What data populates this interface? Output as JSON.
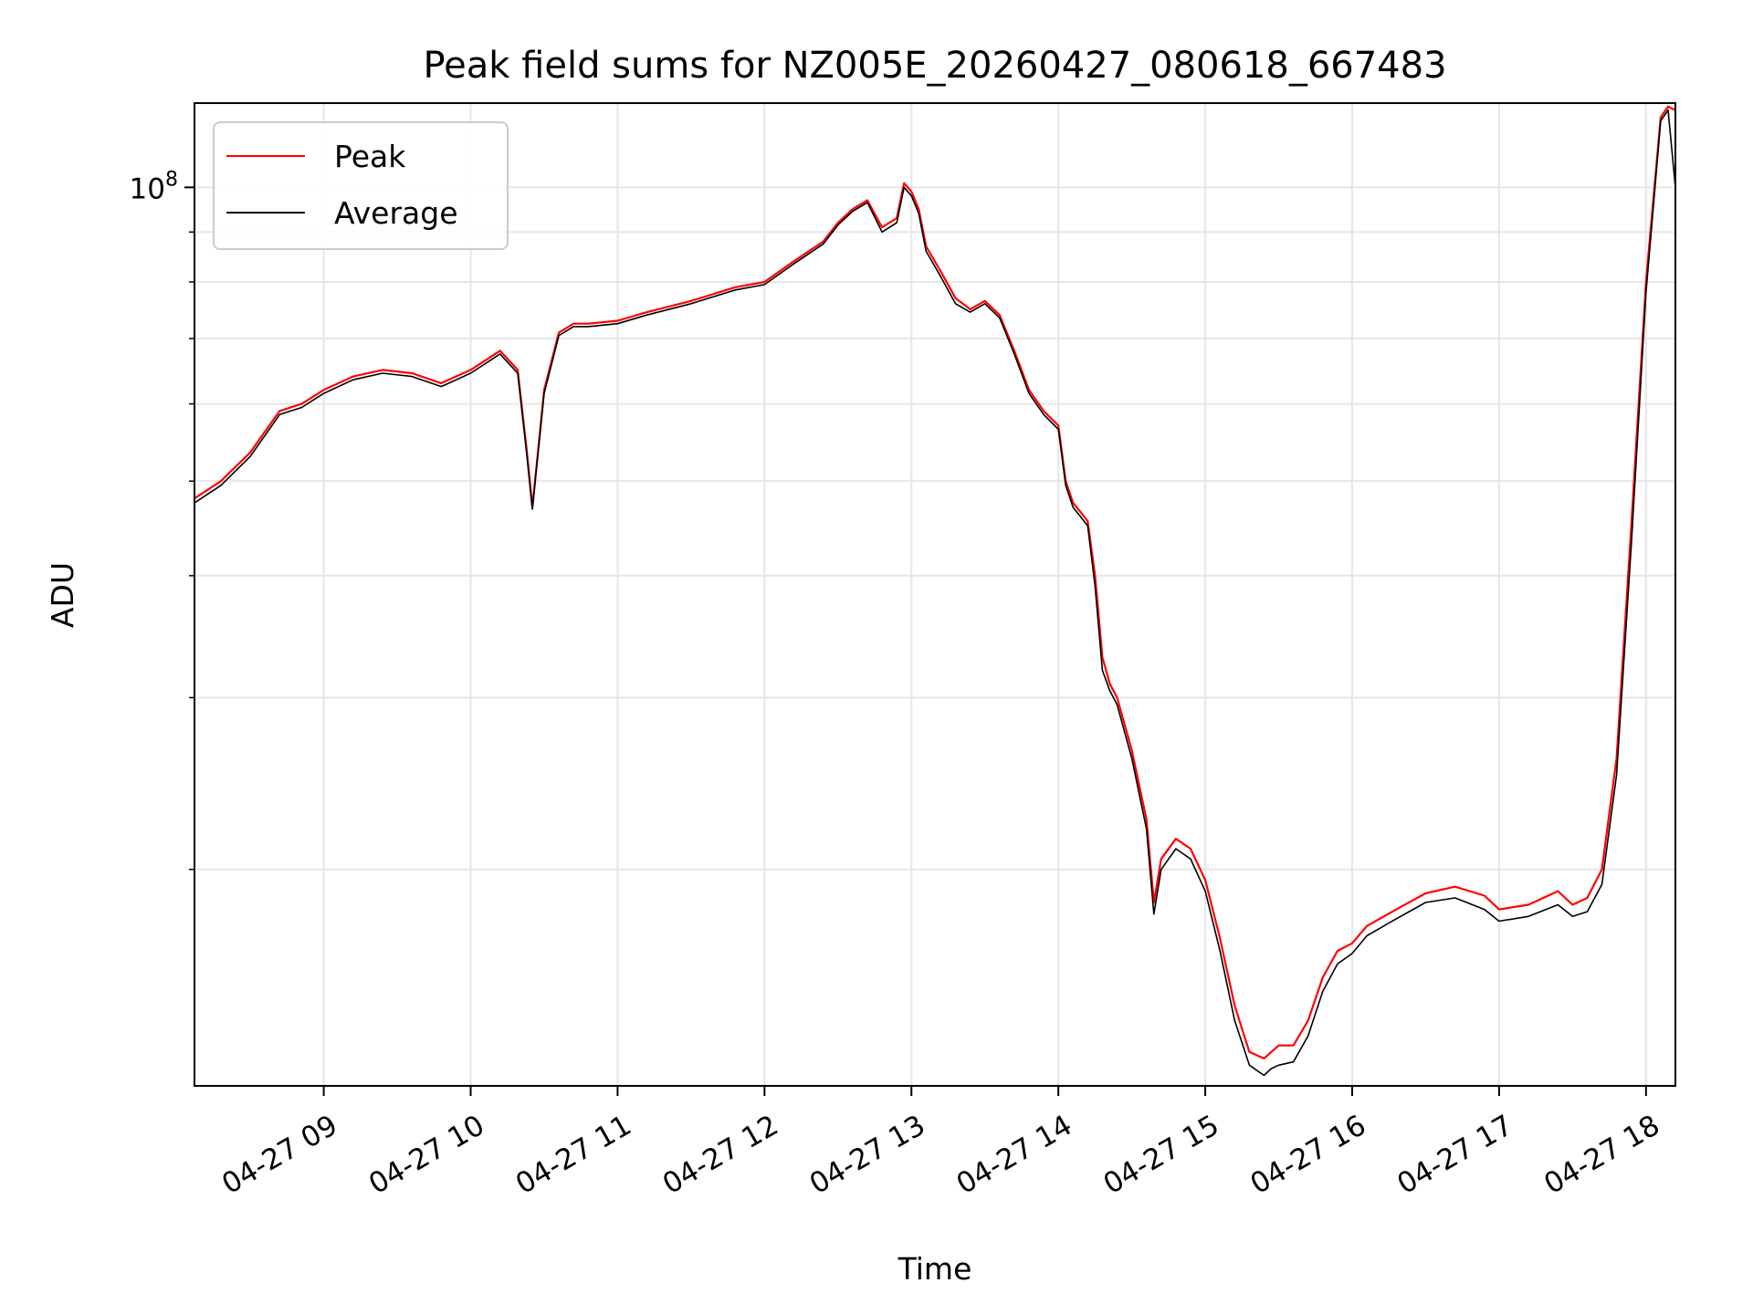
{
  "chart_data": {
    "type": "line",
    "title": "Peak field sums for NZ005E_20260427_080618_667483",
    "xlabel": "Time",
    "ylabel": "ADU",
    "x_unit": "hours (04-27)",
    "xlim": [
      8.12,
      18.2
    ],
    "ylim": [
      12000000.0,
      122000000.0
    ],
    "yscale": "log",
    "grid": true,
    "legend_position": "upper left",
    "x_ticks": [
      {
        "value": 9,
        "label": "04-27 09"
      },
      {
        "value": 10,
        "label": "04-27 10"
      },
      {
        "value": 11,
        "label": "04-27 11"
      },
      {
        "value": 12,
        "label": "04-27 12"
      },
      {
        "value": 13,
        "label": "04-27 13"
      },
      {
        "value": 14,
        "label": "04-27 14"
      },
      {
        "value": 15,
        "label": "04-27 15"
      },
      {
        "value": 16,
        "label": "04-27 16"
      },
      {
        "value": 17,
        "label": "04-27 17"
      },
      {
        "value": 18,
        "label": "04-27 18"
      }
    ],
    "y_major_ticks": [
      {
        "value": 100000000,
        "label_base": "10",
        "label_exp": "8"
      }
    ],
    "y_minor_ticks": [
      20000000,
      30000000,
      40000000,
      50000000,
      60000000,
      70000000,
      80000000,
      90000000
    ],
    "series": [
      {
        "name": "Peak",
        "color": "#ff0000",
        "x": [
          8.12,
          8.3,
          8.5,
          8.7,
          8.85,
          9.0,
          9.2,
          9.4,
          9.6,
          9.8,
          10.0,
          10.2,
          10.32,
          10.38,
          10.42,
          10.5,
          10.6,
          10.7,
          10.8,
          11.0,
          11.2,
          11.5,
          11.8,
          12.0,
          12.2,
          12.4,
          12.5,
          12.6,
          12.7,
          12.8,
          12.9,
          12.95,
          13.0,
          13.05,
          13.1,
          13.2,
          13.3,
          13.4,
          13.5,
          13.6,
          13.7,
          13.8,
          13.9,
          14.0,
          14.05,
          14.1,
          14.15,
          14.2,
          14.25,
          14.3,
          14.35,
          14.4,
          14.5,
          14.6,
          14.65,
          14.7,
          14.8,
          14.9,
          15.0,
          15.1,
          15.2,
          15.3,
          15.4,
          15.45,
          15.5,
          15.6,
          15.7,
          15.8,
          15.9,
          16.0,
          16.1,
          16.3,
          16.5,
          16.7,
          16.9,
          17.0,
          17.2,
          17.4,
          17.5,
          17.6,
          17.7,
          17.8,
          17.9,
          18.0,
          18.1,
          18.15,
          18.2
        ],
        "y": [
          48000000,
          50000000,
          53500000,
          59000000,
          60000000,
          62000000,
          64000000,
          65000000,
          64500000,
          63000000,
          65000000,
          68000000,
          65000000,
          54000000,
          47000000,
          62000000,
          71000000,
          72500000,
          72500000,
          73000000,
          74500000,
          76500000,
          79000000,
          80000000,
          84000000,
          88000000,
          92000000,
          95000000,
          97000000,
          91000000,
          93000000,
          101000000,
          99000000,
          95000000,
          87000000,
          82000000,
          77000000,
          75000000,
          76500000,
          74000000,
          68000000,
          62000000,
          59000000,
          57000000,
          50000000,
          47500000,
          46500000,
          45500000,
          40000000,
          33000000,
          31000000,
          30000000,
          26500000,
          22500000,
          18500000,
          20500000,
          21500000,
          21000000,
          19500000,
          17000000,
          14500000,
          13000000,
          12800000,
          13000000,
          13200000,
          13200000,
          14000000,
          15500000,
          16500000,
          16800000,
          17500000,
          18200000,
          18900000,
          19200000,
          18800000,
          18200000,
          18400000,
          19000000,
          18400000,
          18700000,
          20000000,
          26000000,
          45000000,
          80000000,
          118000000,
          121000000,
          120000000
        ]
      },
      {
        "name": "Average",
        "color": "#000000",
        "x": [
          8.12,
          8.3,
          8.5,
          8.7,
          8.85,
          9.0,
          9.2,
          9.4,
          9.6,
          9.8,
          10.0,
          10.2,
          10.32,
          10.38,
          10.42,
          10.5,
          10.6,
          10.7,
          10.8,
          11.0,
          11.2,
          11.5,
          11.8,
          12.0,
          12.2,
          12.4,
          12.5,
          12.6,
          12.7,
          12.8,
          12.9,
          12.95,
          13.0,
          13.05,
          13.1,
          13.2,
          13.3,
          13.4,
          13.5,
          13.6,
          13.7,
          13.8,
          13.9,
          14.0,
          14.05,
          14.1,
          14.15,
          14.2,
          14.25,
          14.3,
          14.35,
          14.4,
          14.5,
          14.6,
          14.65,
          14.7,
          14.8,
          14.9,
          15.0,
          15.1,
          15.2,
          15.3,
          15.4,
          15.45,
          15.5,
          15.6,
          15.7,
          15.8,
          15.9,
          16.0,
          16.1,
          16.3,
          16.5,
          16.7,
          16.9,
          17.0,
          17.2,
          17.4,
          17.5,
          17.6,
          17.7,
          17.8,
          17.9,
          18.0,
          18.1,
          18.15,
          18.2
        ],
        "y": [
          47500000,
          49500000,
          53000000,
          58500000,
          59500000,
          61500000,
          63500000,
          64500000,
          64000000,
          62500000,
          64500000,
          67500000,
          64500000,
          53500000,
          46800000,
          61500000,
          70500000,
          72000000,
          72000000,
          72500000,
          74000000,
          76000000,
          78500000,
          79500000,
          83500000,
          87500000,
          91500000,
          94500000,
          96500000,
          90000000,
          92000000,
          100000000,
          98000000,
          94000000,
          86000000,
          81000000,
          76000000,
          74500000,
          76000000,
          73500000,
          67500000,
          61500000,
          58500000,
          56500000,
          49500000,
          47000000,
          46000000,
          45000000,
          39000000,
          32000000,
          30500000,
          29500000,
          26000000,
          22000000,
          18000000,
          20000000,
          21000000,
          20500000,
          19000000,
          16500000,
          14000000,
          12600000,
          12300000,
          12500000,
          12600000,
          12700000,
          13500000,
          15000000,
          16000000,
          16400000,
          17100000,
          17800000,
          18500000,
          18700000,
          18200000,
          17700000,
          17900000,
          18400000,
          17900000,
          18100000,
          19300000,
          25000000,
          43000000,
          78000000,
          117000000,
          120000000,
          100000000
        ]
      }
    ]
  }
}
